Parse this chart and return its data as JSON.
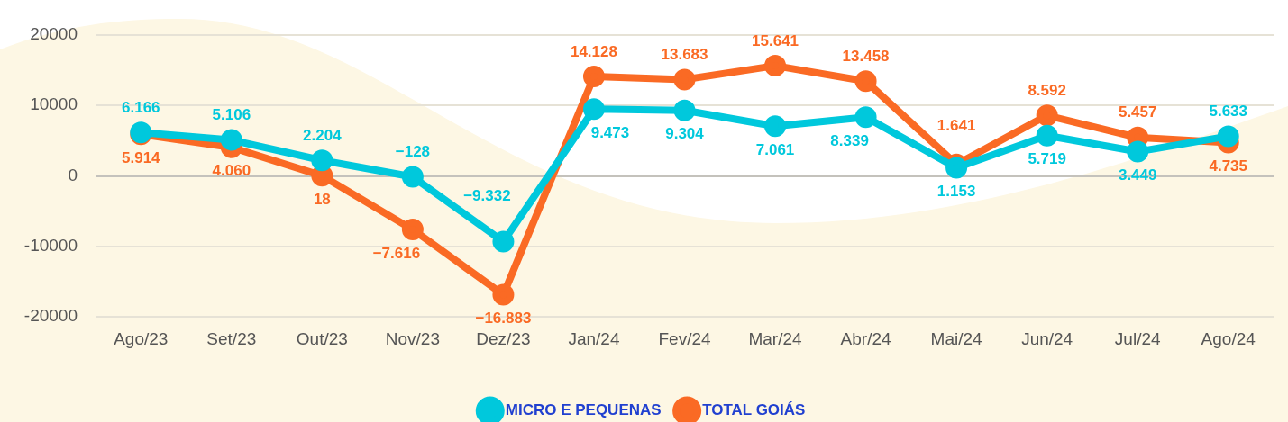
{
  "chart_data": {
    "type": "line",
    "categories": [
      "Ago/23",
      "Set/23",
      "Out/23",
      "Nov/23",
      "Dez/23",
      "Jan/24",
      "Fev/24",
      "Mar/24",
      "Abr/24",
      "Mai/24",
      "Jun/24",
      "Jul/24",
      "Ago/24"
    ],
    "series": [
      {
        "name": "MICRO E PEQUENAS",
        "color": "#00c8dc",
        "values": [
          6166,
          5106,
          2204,
          -128,
          -9332,
          9473,
          9304,
          7061,
          8339,
          1153,
          5719,
          3449,
          5633
        ],
        "value_labels": [
          "6.166",
          "5.106",
          "2.204",
          "−128",
          "−9.332",
          "9.473",
          "9.304",
          "7.061",
          "8.339",
          "1.153",
          "5.719",
          "3.449",
          "5.633"
        ]
      },
      {
        "name": "TOTAL GOIÁS",
        "color": "#fa6a24",
        "values": [
          5914,
          4060,
          18,
          -7616,
          -16883,
          14128,
          13683,
          15641,
          13458,
          1641,
          8592,
          5457,
          4735
        ],
        "value_labels": [
          "5.914",
          "4.060",
          "18",
          "−7.616",
          "−16.883",
          "14.128",
          "13.683",
          "15.641",
          "13.458",
          "1.641",
          "8.592",
          "5.457",
          "4.735"
        ]
      }
    ],
    "ylim": [
      -20000,
      20000
    ],
    "yticks": [
      -20000,
      -10000,
      0,
      10000,
      20000
    ],
    "grid": "y",
    "legend": "bottom",
    "marker": "circle",
    "line_style": "solid"
  }
}
